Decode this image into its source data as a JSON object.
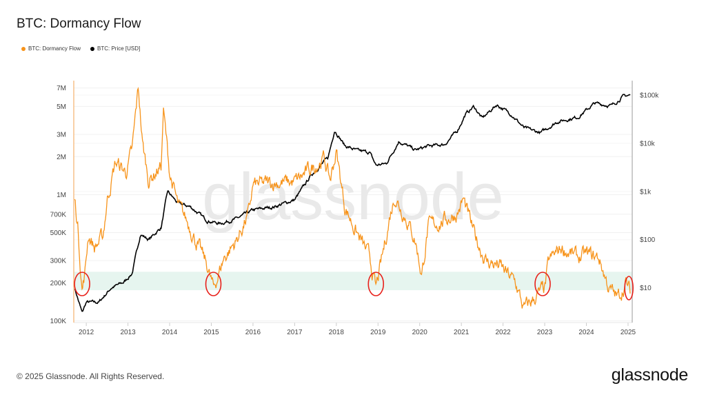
{
  "title": "BTC: Dormancy Flow",
  "footer": "© 2025 Glassnode. All Rights Reserved.",
  "logo_text": "glassnode",
  "watermark": "glassnode",
  "colors": {
    "dormancy": "#f7931a",
    "price": "#000000",
    "band": "#e6f5ef",
    "highlight_circle": "#e8201a",
    "left_axis": "#f7c08a",
    "right_axis": "#bbbbbb"
  },
  "chart_data": {
    "type": "line",
    "title": "BTC: Dormancy Flow",
    "legend_placement": "top-left",
    "grid": true,
    "x_range": [
      2011.7,
      2025.1
    ],
    "x_ticks": [
      "2012",
      "2013",
      "2014",
      "2015",
      "2016",
      "2017",
      "2018",
      "2019",
      "2020",
      "2021",
      "2022",
      "2023",
      "2024",
      "2025"
    ],
    "y_left": {
      "scale": "log",
      "range": [
        97000,
        8000000
      ],
      "ticks": [
        {
          "v": 100000,
          "label": "100K"
        },
        {
          "v": 200000,
          "label": "200K"
        },
        {
          "v": 300000,
          "label": "300K"
        },
        {
          "v": 500000,
          "label": "500K"
        },
        {
          "v": 700000,
          "label": "700K"
        },
        {
          "v": 1000000,
          "label": "1M"
        },
        {
          "v": 2000000,
          "label": "2M"
        },
        {
          "v": 3000000,
          "label": "3M"
        },
        {
          "v": 5000000,
          "label": "5M"
        },
        {
          "v": 7000000,
          "label": "7M"
        }
      ]
    },
    "y_right": {
      "scale": "log",
      "range": [
        1.9,
        200000
      ],
      "ticks": [
        {
          "v": 10,
          "label": "$10"
        },
        {
          "v": 100,
          "label": "$100"
        },
        {
          "v": 1000,
          "label": "$1k"
        },
        {
          "v": 10000,
          "label": "$10k"
        },
        {
          "v": 100000,
          "label": "$100k"
        }
      ]
    },
    "band": {
      "axis": "left",
      "from": 175000,
      "to": 245000
    },
    "highlights": [
      2011.9,
      2015.05,
      2018.95,
      2022.95,
      2025.02
    ],
    "series": [
      {
        "name": "BTC: Dormancy Flow",
        "axis": "left",
        "points": [
          [
            2011.72,
            950000
          ],
          [
            2011.8,
            550000
          ],
          [
            2011.9,
            178000
          ],
          [
            2011.97,
            240000
          ],
          [
            2012.05,
            490000
          ],
          [
            2012.2,
            380000
          ],
          [
            2012.4,
            460000
          ],
          [
            2012.5,
            910000
          ],
          [
            2012.7,
            1800000
          ],
          [
            2012.95,
            1500000
          ],
          [
            2013.1,
            2200000
          ],
          [
            2013.25,
            7100000
          ],
          [
            2013.35,
            2500000
          ],
          [
            2013.5,
            1300000
          ],
          [
            2013.8,
            1700000
          ],
          [
            2013.85,
            4700000
          ],
          [
            2014.0,
            1500000
          ],
          [
            2014.2,
            810000
          ],
          [
            2014.5,
            550000
          ],
          [
            2014.7,
            380000
          ],
          [
            2014.9,
            275000
          ],
          [
            2015.05,
            178000
          ],
          [
            2015.3,
            315000
          ],
          [
            2015.6,
            430000
          ],
          [
            2015.9,
            710000
          ],
          [
            2016.0,
            1180000
          ],
          [
            2016.5,
            1250000
          ],
          [
            2017.0,
            1250000
          ],
          [
            2017.3,
            1500000
          ],
          [
            2017.7,
            1950000
          ],
          [
            2017.85,
            1300000
          ],
          [
            2018.0,
            2200000
          ],
          [
            2018.2,
            810000
          ],
          [
            2018.5,
            490000
          ],
          [
            2018.8,
            315000
          ],
          [
            2018.95,
            178000
          ],
          [
            2019.1,
            315000
          ],
          [
            2019.3,
            710000
          ],
          [
            2019.4,
            976000
          ],
          [
            2019.7,
            630000
          ],
          [
            2019.9,
            430000
          ],
          [
            2020.05,
            230000
          ],
          [
            2020.2,
            550000
          ],
          [
            2020.6,
            630000
          ],
          [
            2020.9,
            710000
          ],
          [
            2021.05,
            910000
          ],
          [
            2021.3,
            490000
          ],
          [
            2021.6,
            295000
          ],
          [
            2021.9,
            275000
          ],
          [
            2022.3,
            200000
          ],
          [
            2022.5,
            123000
          ],
          [
            2022.8,
            157000
          ],
          [
            2023.0,
            178000
          ],
          [
            2023.1,
            295000
          ],
          [
            2023.4,
            380000
          ],
          [
            2023.8,
            315000
          ],
          [
            2024.0,
            335000
          ],
          [
            2024.3,
            315000
          ],
          [
            2024.55,
            178000
          ],
          [
            2024.75,
            152000
          ],
          [
            2024.95,
            200000
          ],
          [
            2025.05,
            168000
          ]
        ]
      },
      {
        "name": "BTC: Price [USD]",
        "axis": "right",
        "points": [
          [
            2011.72,
            10
          ],
          [
            2011.9,
            3
          ],
          [
            2012.0,
            5
          ],
          [
            2012.3,
            5
          ],
          [
            2012.6,
            10
          ],
          [
            2012.9,
            13
          ],
          [
            2013.1,
            20
          ],
          [
            2013.3,
            130
          ],
          [
            2013.5,
            100
          ],
          [
            2013.8,
            180
          ],
          [
            2013.95,
            1000
          ],
          [
            2014.2,
            570
          ],
          [
            2014.5,
            480
          ],
          [
            2014.9,
            250
          ],
          [
            2015.2,
            215
          ],
          [
            2015.6,
            270
          ],
          [
            2016.0,
            410
          ],
          [
            2016.5,
            480
          ],
          [
            2017.0,
            670
          ],
          [
            2017.4,
            2200
          ],
          [
            2017.8,
            5000
          ],
          [
            2017.96,
            19000
          ],
          [
            2018.2,
            9000
          ],
          [
            2018.5,
            7000
          ],
          [
            2018.8,
            6500
          ],
          [
            2018.95,
            3500
          ],
          [
            2019.2,
            3800
          ],
          [
            2019.5,
            11000
          ],
          [
            2019.9,
            7200
          ],
          [
            2020.2,
            8700
          ],
          [
            2020.6,
            9500
          ],
          [
            2020.9,
            18000
          ],
          [
            2021.1,
            40000
          ],
          [
            2021.3,
            58000
          ],
          [
            2021.5,
            33000
          ],
          [
            2021.85,
            63000
          ],
          [
            2022.2,
            40000
          ],
          [
            2022.5,
            21000
          ],
          [
            2022.9,
            16500
          ],
          [
            2023.3,
            28000
          ],
          [
            2023.8,
            35000
          ],
          [
            2024.2,
            68000
          ],
          [
            2024.6,
            60000
          ],
          [
            2024.9,
            96000
          ],
          [
            2025.05,
            100000
          ]
        ]
      }
    ]
  }
}
